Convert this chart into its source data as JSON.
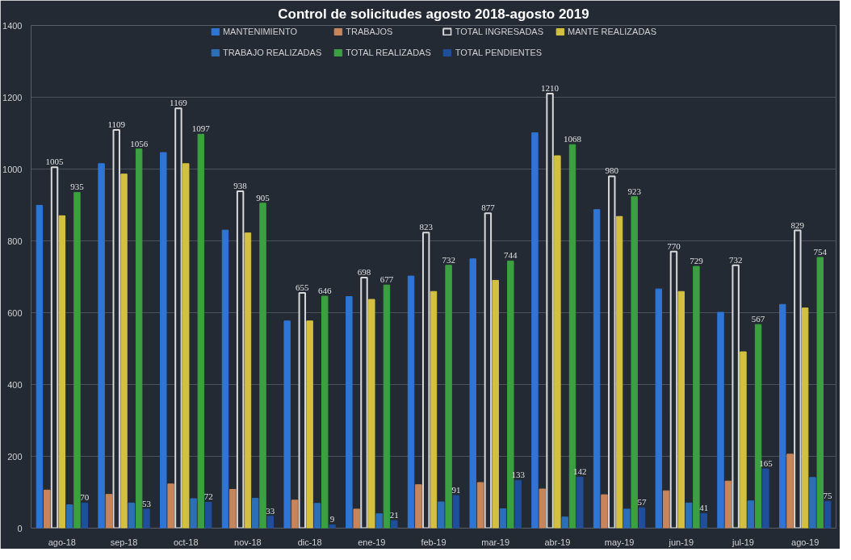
{
  "chart_data": {
    "type": "bar",
    "title": "Control de solicitudes agosto 2018-agosto 2019",
    "categories": [
      "ago-18",
      "sep-18",
      "oct-18",
      "nov-18",
      "dic-18",
      "ene-19",
      "feb-19",
      "mar-19",
      "abr-19",
      "may-19",
      "jun-19",
      "jul-19",
      "ago-19"
    ],
    "series": [
      {
        "name": "MANTENIMIENTO",
        "color": "#2e75d6",
        "values": [
          899,
          1015,
          1046,
          830,
          577,
          645,
          702,
          750,
          1101,
          887,
          666,
          601,
          623
        ]
      },
      {
        "name": "TRABAJOS",
        "color": "#c8845a",
        "values": [
          106,
          94,
          123,
          108,
          78,
          53,
          121,
          127,
          109,
          93,
          104,
          131,
          206
        ]
      },
      {
        "name": "TOTAL INGRESADAS",
        "color": "#d9d9d9",
        "values": [
          1005,
          1109,
          1169,
          938,
          655,
          698,
          823,
          877,
          1210,
          980,
          770,
          732,
          829
        ],
        "value_labels": [
          "1005",
          "1109",
          "1169",
          "938",
          "655",
          "698",
          "823",
          "877",
          "1210",
          "980",
          "770",
          "732",
          "829"
        ]
      },
      {
        "name": "MANTE REALIZADAS",
        "color": "#d4c040",
        "values": [
          870,
          986,
          1015,
          822,
          577,
          637,
          659,
          690,
          1037,
          868,
          659,
          491,
          613
        ]
      },
      {
        "name": "TRABAJO REALIZADAS",
        "color": "#2a6fb8",
        "values": [
          65,
          70,
          82,
          83,
          69,
          40,
          73,
          54,
          31,
          53,
          70,
          76,
          141
        ]
      },
      {
        "name": "TOTAL REALIZADAS",
        "color": "#3aa040",
        "values": [
          935,
          1056,
          1097,
          905,
          646,
          677,
          732,
          744,
          1068,
          923,
          729,
          567,
          754
        ],
        "value_labels": [
          "935",
          "1056",
          "1097",
          "905",
          "646",
          "677",
          "732",
          "744",
          "1068",
          "923",
          "729",
          "567",
          "754"
        ]
      },
      {
        "name": "TOTAL PENDIENTES",
        "color": "#1f4e9a",
        "values": [
          70,
          53,
          72,
          33,
          9,
          21,
          91,
          133,
          142,
          57,
          41,
          165,
          75
        ],
        "value_labels": [
          "70",
          "53",
          "72",
          "33",
          "9",
          "21",
          "91",
          "133",
          "142",
          "57",
          "41",
          "165",
          "75"
        ]
      }
    ],
    "ylim": [
      0,
      1400
    ],
    "yticks": [
      0,
      200,
      400,
      600,
      800,
      1000,
      1200,
      1400
    ],
    "grid": "y",
    "legend": "top"
  }
}
